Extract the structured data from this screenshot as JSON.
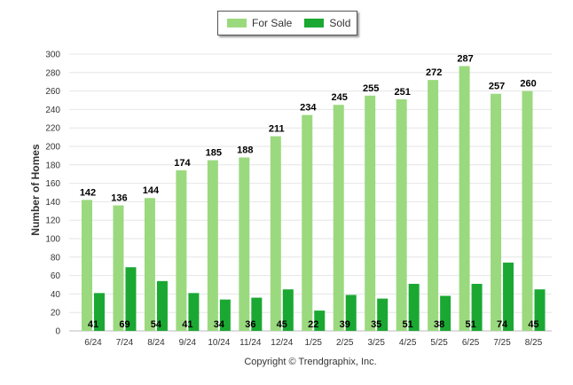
{
  "chart_data": {
    "type": "bar",
    "categories": [
      "6/24",
      "7/24",
      "8/24",
      "9/24",
      "10/24",
      "11/24",
      "12/24",
      "1/25",
      "2/25",
      "3/25",
      "4/25",
      "5/25",
      "6/25",
      "7/25",
      "8/25"
    ],
    "series": [
      {
        "name": "For Sale",
        "color": "#9bd97f",
        "values": [
          142,
          136,
          144,
          174,
          185,
          188,
          211,
          234,
          245,
          255,
          251,
          272,
          287,
          257,
          260
        ]
      },
      {
        "name": "Sold",
        "color": "#1aa832",
        "values": [
          41,
          69,
          54,
          41,
          34,
          36,
          45,
          22,
          39,
          35,
          51,
          38,
          51,
          74,
          45
        ]
      }
    ],
    "ylabel": "Number of Homes",
    "ylim": [
      0,
      300
    ],
    "yticks": [
      0,
      20,
      40,
      60,
      80,
      100,
      120,
      140,
      160,
      180,
      200,
      220,
      240,
      260,
      280,
      300
    ],
    "grid": true,
    "legend_placement": "top-center"
  },
  "footer": "Copyright © Trendgraphix, Inc."
}
